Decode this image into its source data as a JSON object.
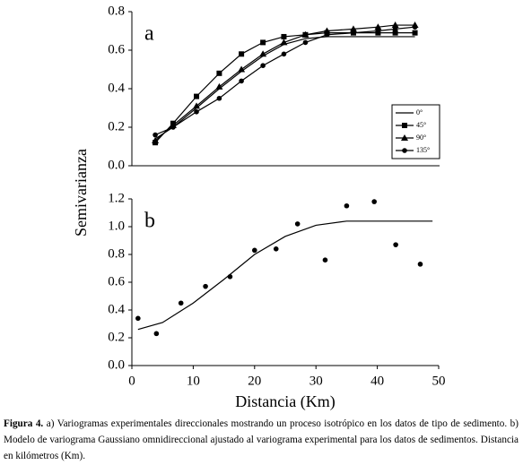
{
  "chart_data": [
    {
      "type": "line",
      "annotation": "a",
      "ylabel": "Semivarianza",
      "x": [
        3.8,
        6.7,
        10.5,
        14.2,
        17.8,
        21.3,
        24.7,
        28.2,
        31.7,
        36,
        40,
        42.8,
        46
      ],
      "series": [
        {
          "name": "0°",
          "color": "#000000",
          "marker": "none",
          "values": [
            0.14,
            0.2,
            0.3,
            0.4,
            0.49,
            0.57,
            0.63,
            0.66,
            0.67,
            0.67,
            0.67,
            0.67,
            0.67
          ]
        },
        {
          "name": "45°",
          "color": "#000000",
          "marker": "square",
          "values": [
            0.12,
            0.22,
            0.36,
            0.48,
            0.58,
            0.64,
            0.67,
            0.68,
            0.69,
            0.69,
            0.69,
            0.69,
            0.69
          ]
        },
        {
          "name": "90°",
          "color": "#000000",
          "marker": "triangle",
          "values": [
            0.13,
            0.21,
            0.31,
            0.41,
            0.5,
            0.58,
            0.64,
            0.68,
            0.7,
            0.71,
            0.72,
            0.73,
            0.73
          ]
        },
        {
          "name": "135°",
          "color": "#000000",
          "marker": "circle",
          "values": [
            0.16,
            0.2,
            0.28,
            0.35,
            0.44,
            0.52,
            0.58,
            0.64,
            0.68,
            0.69,
            0.7,
            0.71,
            0.72
          ]
        }
      ],
      "xlim": [
        0,
        50
      ],
      "ylim": [
        0,
        0.8
      ],
      "yticks": [
        {
          "value": 0,
          "label": "0.0"
        },
        {
          "value": 0.2,
          "label": "0.2"
        },
        {
          "value": 0.4,
          "label": "0.4"
        },
        {
          "value": 0.6,
          "label": "0.6"
        },
        {
          "value": 0.8,
          "label": "0.8"
        }
      ],
      "legend": "right"
    },
    {
      "type": "scatter",
      "annotation": "b",
      "xlabel": "Distancia (Km)",
      "series": [
        {
          "color": "#000000",
          "marker": "circle",
          "x": [
            1,
            4,
            8,
            12,
            16,
            20,
            23.5,
            27,
            31.5,
            35,
            39.5,
            43,
            47
          ],
          "values": [
            0.34,
            0.23,
            0.45,
            0.57,
            0.64,
            0.83,
            0.84,
            1.02,
            0.76,
            1.15,
            1.18,
            0.87,
            0.73
          ]
        },
        {
          "color": "#000000",
          "marker": "none",
          "x": [
            1,
            5,
            10,
            15,
            20,
            25,
            30,
            35,
            40,
            45,
            49
          ],
          "values": [
            0.26,
            0.31,
            0.45,
            0.62,
            0.8,
            0.93,
            1.01,
            1.04,
            1.04,
            1.04,
            1.04
          ]
        }
      ],
      "xlim": [
        0,
        50
      ],
      "ylim": [
        0,
        1.2
      ],
      "xticks": [
        0,
        10,
        20,
        30,
        40,
        50
      ],
      "yticks": [
        {
          "value": 0,
          "label": "0.0"
        },
        {
          "value": 0.2,
          "label": "0.2"
        },
        {
          "value": 0.4,
          "label": "0.4"
        },
        {
          "value": 0.6,
          "label": "0.6"
        },
        {
          "value": 0.8,
          "label": "0.8"
        },
        {
          "value": 1,
          "label": "1.0"
        },
        {
          "value": 1.2,
          "label": "1.2"
        }
      ]
    }
  ],
  "caption": {
    "label": "Figura 4.",
    "text": "a) Variogramas experimentales direccionales mostrando un proceso isotrópico en los datos de tipo de sedimento. b) Modelo de variograma Gaussiano omnidireccional ajustado al variograma experimental para los datos de sedimentos. Distancia en kilómetros (Km)."
  }
}
